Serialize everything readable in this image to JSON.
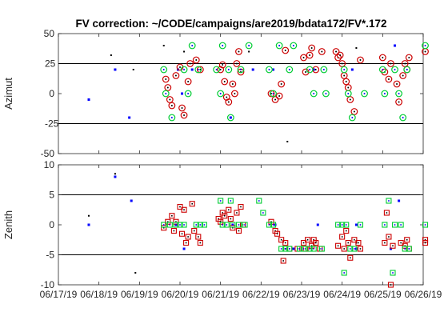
{
  "window": {
    "title": "FV correction: ~/CODE/campaigns/are2019/bdata172/FV*.172"
  },
  "colors": {
    "blue": "#0000ff",
    "black": "#000000",
    "red": "#cc0000",
    "green": "#00cc33",
    "frame": "#262626",
    "refline": "#000000"
  },
  "chart_data": [
    {
      "type": "scatter",
      "title": "FV correction: ~/CODE/campaigns/are2019/bdata172/FV*.172",
      "ylabel": "Azimut",
      "ylim": [
        -50,
        50
      ],
      "xlim": [
        0,
        9
      ],
      "yticks": [
        -50,
        0,
        50
      ],
      "reference_lines": [
        25,
        -25
      ],
      "reference_labels": [
        "25",
        "-25"
      ],
      "grid": false,
      "series": [
        {
          "marker": "dot-blue",
          "points": [
            [
              0.75,
              -5
            ],
            [
              1.4,
              20
            ],
            [
              1.75,
              -20
            ],
            [
              2.95,
              20
            ],
            [
              3.05,
              0
            ],
            [
              3.3,
              20
            ],
            [
              4.25,
              -20
            ],
            [
              4.8,
              20
            ],
            [
              5.3,
              20
            ],
            [
              6.3,
              20
            ],
            [
              7.25,
              20
            ],
            [
              8.3,
              40
            ]
          ]
        },
        {
          "marker": "dot-black",
          "points": [
            [
              1.3,
              32
            ],
            [
              1.85,
              20
            ],
            [
              2.6,
              40
            ],
            [
              3.1,
              35
            ],
            [
              4.7,
              35
            ],
            [
              5.65,
              -40
            ],
            [
              7.35,
              38
            ]
          ]
        },
        {
          "marker": "circle-red",
          "points": [
            [
              2.65,
              12
            ],
            [
              2.7,
              5
            ],
            [
              2.75,
              -5
            ],
            [
              2.8,
              -10
            ],
            [
              2.9,
              15
            ],
            [
              3.0,
              22
            ],
            [
              3.05,
              -12
            ],
            [
              3.1,
              -18
            ],
            [
              3.2,
              10
            ],
            [
              3.25,
              25
            ],
            [
              3.4,
              28
            ],
            [
              3.5,
              20
            ],
            [
              4.0,
              20
            ],
            [
              4.05,
              24
            ],
            [
              4.1,
              10
            ],
            [
              4.15,
              -3
            ],
            [
              4.2,
              -7
            ],
            [
              4.3,
              8
            ],
            [
              4.35,
              0
            ],
            [
              4.4,
              25
            ],
            [
              4.45,
              35
            ],
            [
              4.5,
              18
            ],
            [
              5.25,
              0
            ],
            [
              5.35,
              -5
            ],
            [
              5.45,
              -2
            ],
            [
              5.5,
              8
            ],
            [
              5.6,
              36
            ],
            [
              6.05,
              30
            ],
            [
              6.1,
              18
            ],
            [
              6.2,
              32
            ],
            [
              6.25,
              38
            ],
            [
              6.35,
              20
            ],
            [
              6.5,
              35
            ],
            [
              6.85,
              35
            ],
            [
              6.9,
              30
            ],
            [
              6.95,
              32
            ],
            [
              7.0,
              25
            ],
            [
              7.05,
              15
            ],
            [
              7.1,
              10
            ],
            [
              7.15,
              5
            ],
            [
              7.2,
              -5
            ],
            [
              7.3,
              -15
            ],
            [
              7.45,
              28
            ],
            [
              8.0,
              30
            ],
            [
              8.05,
              18
            ],
            [
              8.15,
              12
            ],
            [
              8.2,
              25
            ],
            [
              8.35,
              8
            ],
            [
              8.4,
              -7
            ],
            [
              8.5,
              15
            ],
            [
              8.55,
              25
            ],
            [
              8.6,
              20
            ],
            [
              8.65,
              30
            ],
            [
              9.05,
              35
            ]
          ]
        },
        {
          "marker": "circle-green",
          "points": [
            [
              2.6,
              20
            ],
            [
              2.65,
              0
            ],
            [
              2.8,
              -20
            ],
            [
              3.1,
              20
            ],
            [
              3.2,
              0
            ],
            [
              3.3,
              40
            ],
            [
              3.45,
              20
            ],
            [
              3.9,
              20
            ],
            [
              4.0,
              0
            ],
            [
              4.05,
              40
            ],
            [
              4.2,
              20
            ],
            [
              4.25,
              -20
            ],
            [
              4.5,
              20
            ],
            [
              4.7,
              40
            ],
            [
              5.2,
              20
            ],
            [
              5.3,
              0
            ],
            [
              5.45,
              40
            ],
            [
              5.7,
              20
            ],
            [
              5.8,
              40
            ],
            [
              6.2,
              20
            ],
            [
              6.3,
              0
            ],
            [
              6.55,
              20
            ],
            [
              6.6,
              0
            ],
            [
              7.05,
              20
            ],
            [
              7.15,
              0
            ],
            [
              7.25,
              -20
            ],
            [
              7.55,
              0
            ],
            [
              8.0,
              20
            ],
            [
              8.05,
              0
            ],
            [
              8.3,
              20
            ],
            [
              8.4,
              0
            ],
            [
              8.5,
              -20
            ],
            [
              8.6,
              20
            ],
            [
              9.05,
              40
            ]
          ]
        }
      ]
    },
    {
      "type": "scatter",
      "ylabel": "Zenith",
      "ylim": [
        -10,
        10
      ],
      "xlim": [
        0,
        9
      ],
      "yticks": [
        -10,
        -5,
        0,
        5,
        10
      ],
      "reference_lines": [
        5,
        -5
      ],
      "grid": false,
      "xticklabels": [
        "06/17/19",
        "06/18/19",
        "06/19/19",
        "06/20/19",
        "06/21/19",
        "06/22/19",
        "06/23/19",
        "06/24/19",
        "06/25/19",
        "06/26/19"
      ],
      "series": [
        {
          "marker": "dot-blue",
          "points": [
            [
              0.75,
              0
            ],
            [
              1.4,
              8
            ],
            [
              1.8,
              4
            ],
            [
              2.9,
              0
            ],
            [
              3.1,
              -4
            ],
            [
              4.3,
              0
            ],
            [
              5.35,
              0
            ],
            [
              5.8,
              -4
            ],
            [
              6.4,
              0
            ],
            [
              7.35,
              0
            ],
            [
              7.35,
              -4
            ],
            [
              8.2,
              -4
            ],
            [
              8.4,
              4
            ]
          ]
        },
        {
          "marker": "dot-black",
          "points": [
            [
              0.75,
              1.5
            ],
            [
              1.4,
              8.5
            ],
            [
              1.9,
              -8
            ],
            [
              5.6,
              -4
            ],
            [
              7.35,
              -3
            ]
          ]
        },
        {
          "marker": "square-red",
          "points": [
            [
              2.6,
              -0.5
            ],
            [
              2.7,
              0.5
            ],
            [
              2.8,
              1.5
            ],
            [
              2.85,
              -1
            ],
            [
              2.9,
              0.5
            ],
            [
              3.0,
              3
            ],
            [
              3.05,
              -1.5
            ],
            [
              3.1,
              2.5
            ],
            [
              3.15,
              -3
            ],
            [
              3.2,
              -2
            ],
            [
              3.3,
              3.5
            ],
            [
              3.35,
              -1
            ],
            [
              3.45,
              -2
            ],
            [
              3.5,
              -3
            ],
            [
              3.95,
              1
            ],
            [
              4.0,
              0.5
            ],
            [
              4.05,
              2
            ],
            [
              4.1,
              1.5
            ],
            [
              4.2,
              2.5
            ],
            [
              4.25,
              1
            ],
            [
              4.3,
              -0.5
            ],
            [
              4.4,
              2
            ],
            [
              4.45,
              -1
            ],
            [
              4.5,
              3
            ],
            [
              4.55,
              0
            ],
            [
              5.25,
              0.5
            ],
            [
              5.35,
              -1
            ],
            [
              5.4,
              -1.5
            ],
            [
              5.5,
              -2.5
            ],
            [
              5.55,
              -6
            ],
            [
              5.6,
              -3
            ],
            [
              5.7,
              -4
            ],
            [
              5.9,
              -4
            ],
            [
              6.05,
              -3
            ],
            [
              6.1,
              -4
            ],
            [
              6.15,
              -2.5
            ],
            [
              6.25,
              -3.5
            ],
            [
              6.3,
              -2.5
            ],
            [
              6.35,
              -3
            ],
            [
              6.45,
              -4
            ],
            [
              6.9,
              -3.5
            ],
            [
              7.0,
              -2
            ],
            [
              7.05,
              -4
            ],
            [
              7.1,
              -1
            ],
            [
              7.15,
              -3
            ],
            [
              7.2,
              -5.5
            ],
            [
              7.3,
              -2.5
            ],
            [
              7.4,
              -3
            ],
            [
              7.45,
              -4
            ],
            [
              8.05,
              -3
            ],
            [
              8.1,
              2
            ],
            [
              8.15,
              -2
            ],
            [
              8.2,
              -10
            ],
            [
              8.25,
              -3.5
            ],
            [
              8.45,
              -3
            ],
            [
              8.55,
              -3.5
            ],
            [
              8.6,
              -2.5
            ],
            [
              8.65,
              -4
            ],
            [
              9.05,
              -2.5
            ],
            [
              9.05,
              -3
            ]
          ]
        },
        {
          "marker": "square-green",
          "points": [
            [
              2.6,
              0
            ],
            [
              2.75,
              0
            ],
            [
              2.9,
              0
            ],
            [
              3.0,
              0
            ],
            [
              3.1,
              0
            ],
            [
              3.4,
              0
            ],
            [
              3.5,
              0
            ],
            [
              3.6,
              0
            ],
            [
              4.0,
              4
            ],
            [
              4.05,
              0
            ],
            [
              4.15,
              0
            ],
            [
              4.25,
              4
            ],
            [
              4.3,
              0
            ],
            [
              4.45,
              0
            ],
            [
              4.6,
              0
            ],
            [
              4.95,
              4
            ],
            [
              5.05,
              2
            ],
            [
              5.2,
              0
            ],
            [
              5.3,
              0
            ],
            [
              5.5,
              -4
            ],
            [
              5.6,
              -4
            ],
            [
              5.7,
              -4
            ],
            [
              5.95,
              -4
            ],
            [
              6.05,
              -4
            ],
            [
              6.2,
              -4
            ],
            [
              6.3,
              -4
            ],
            [
              6.5,
              -4
            ],
            [
              6.9,
              0
            ],
            [
              7.0,
              0
            ],
            [
              7.05,
              -8
            ],
            [
              7.1,
              0
            ],
            [
              7.2,
              -4
            ],
            [
              7.3,
              -4
            ],
            [
              7.45,
              0
            ],
            [
              8.05,
              0
            ],
            [
              8.15,
              4
            ],
            [
              8.25,
              -8
            ],
            [
              8.3,
              0
            ],
            [
              8.45,
              0
            ],
            [
              8.55,
              -4
            ],
            [
              8.65,
              -4
            ],
            [
              9.05,
              0
            ]
          ]
        }
      ]
    }
  ]
}
